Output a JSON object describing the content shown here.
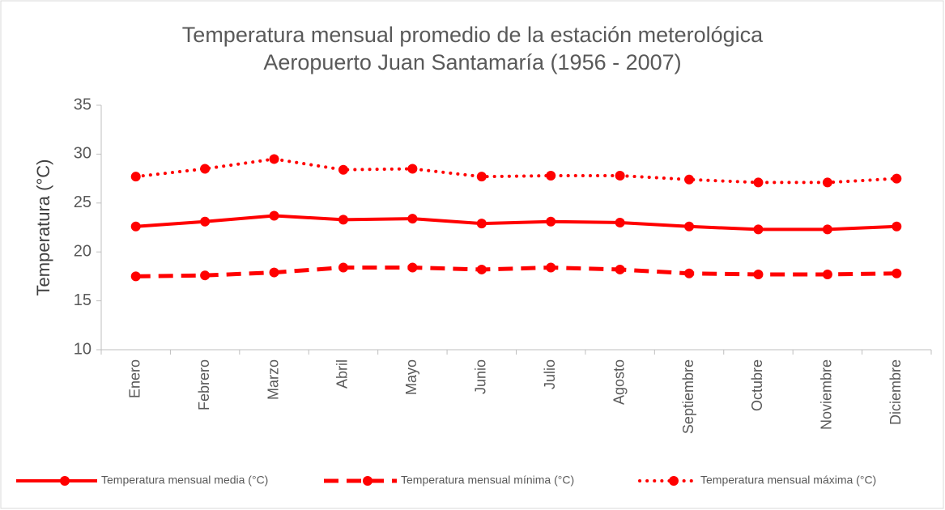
{
  "chart_data": {
    "type": "line",
    "title": "Temperatura mensual promedio de la estación meterológica\nAeropuerto Juan Santamaría (1956 - 2007)",
    "y_label": "Temperatura (°C)",
    "categories": [
      "Enero",
      "Febrero",
      "Marzo",
      "Abril",
      "Mayo",
      "Junio",
      "Julio",
      "Agosto",
      "Septiembre",
      "Octubre",
      "Noviembre",
      "Diciembre"
    ],
    "series": [
      {
        "name": "Temperatura mensual media (°C)",
        "color": "#ff0000",
        "dash": "solid",
        "values": [
          22.6,
          23.1,
          23.7,
          23.3,
          23.4,
          22.9,
          23.1,
          23.0,
          22.6,
          22.3,
          22.3,
          22.6
        ]
      },
      {
        "name": "Temperatura mensual mínima (°C)",
        "color": "#ff0000",
        "dash": "dashed",
        "values": [
          17.5,
          17.6,
          17.9,
          18.4,
          18.4,
          18.2,
          18.4,
          18.2,
          17.8,
          17.7,
          17.7,
          17.8
        ]
      },
      {
        "name": "Temperatura mensual máxima (°C)",
        "color": "#ff0000",
        "dash": "dotted",
        "values": [
          27.7,
          28.5,
          29.5,
          28.4,
          28.5,
          27.7,
          27.8,
          27.8,
          27.4,
          27.1,
          27.1,
          27.5
        ]
      }
    ],
    "ylim": [
      10,
      35
    ],
    "yticks": [
      10,
      15,
      20,
      25,
      30,
      35
    ],
    "grid": false,
    "legend": "bottom"
  }
}
